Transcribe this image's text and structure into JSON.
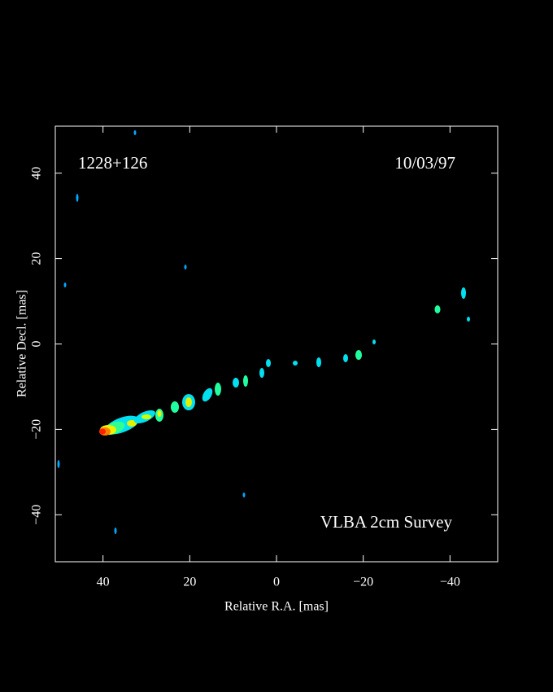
{
  "chart_data": {
    "type": "image",
    "xlabel": "Relative R.A. [mas]",
    "ylabel": "Relative Decl. [mas]",
    "annotations": [
      "1228+126",
      "10/03/97",
      "VLBA 2cm Survey"
    ],
    "xlim": [
      51,
      -51
    ],
    "ylim": [
      -51,
      51
    ],
    "xticks": [
      40,
      20,
      0,
      {
        "value": -20,
        "label": "−20"
      },
      {
        "value": -40,
        "label": "−40"
      }
    ],
    "yticks": [
      {
        "value": -40,
        "label": "−40"
      },
      {
        "value": -20,
        "label": "−20"
      },
      0,
      20,
      40
    ],
    "color": "#ffffff"
  }
}
